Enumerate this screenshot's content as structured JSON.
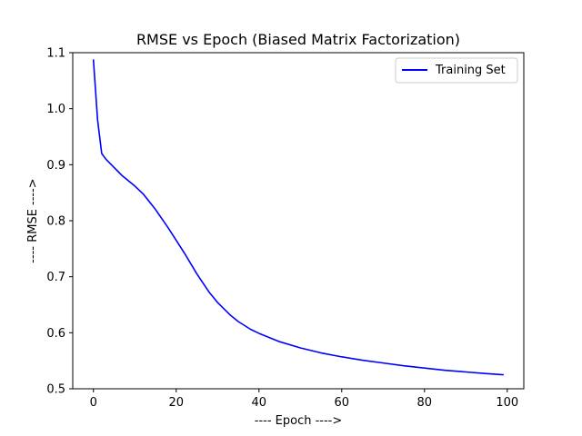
{
  "chart_data": {
    "type": "line",
    "title": "RMSE vs Epoch (Biased Matrix Factorization)",
    "xlabel": "----  Epoch  ---->",
    "ylabel": "----  RMSE  ---->",
    "xlim": [
      -5,
      104
    ],
    "ylim": [
      0.5,
      1.1
    ],
    "xticks": [
      0,
      20,
      40,
      60,
      80,
      100
    ],
    "yticks": [
      0.5,
      0.6,
      0.7,
      0.8,
      0.9,
      1.0,
      1.1
    ],
    "xtick_labels": [
      "0",
      "20",
      "40",
      "60",
      "80",
      "100"
    ],
    "ytick_labels": [
      "0.5",
      "0.6",
      "0.7",
      "0.8",
      "0.9",
      "1.0",
      "1.1"
    ],
    "grid": false,
    "legend_position": "top-right",
    "series": [
      {
        "name": "Training Set",
        "color": "#0000ff",
        "x": [
          0,
          1,
          2,
          3,
          5,
          7,
          10,
          12,
          15,
          18,
          20,
          22,
          25,
          28,
          30,
          33,
          35,
          38,
          40,
          45,
          50,
          55,
          60,
          65,
          70,
          75,
          80,
          85,
          90,
          95,
          99
        ],
        "y": [
          1.087,
          0.98,
          0.92,
          0.91,
          0.895,
          0.88,
          0.862,
          0.848,
          0.82,
          0.788,
          0.765,
          0.742,
          0.705,
          0.672,
          0.654,
          0.632,
          0.62,
          0.606,
          0.599,
          0.584,
          0.573,
          0.564,
          0.557,
          0.551,
          0.546,
          0.541,
          0.537,
          0.533,
          0.53,
          0.527,
          0.525
        ]
      }
    ]
  }
}
